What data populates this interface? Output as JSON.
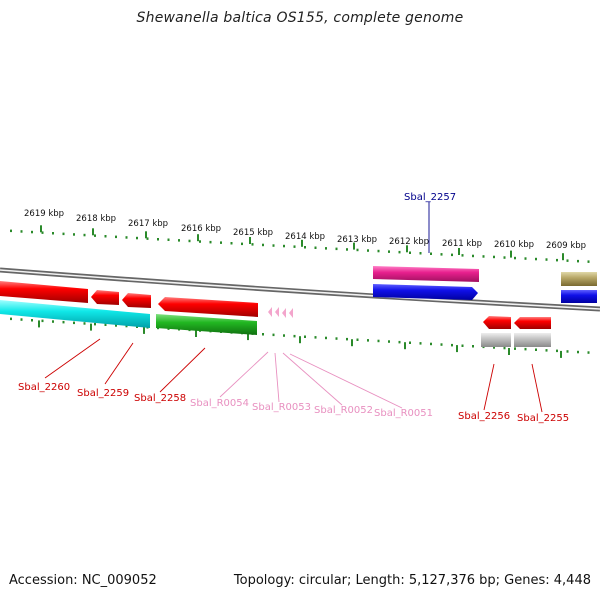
{
  "title": "Shewanella baltica OS155, complete genome",
  "footer": {
    "accession": "Accession: NC_009052",
    "summary": "Topology: circular; Length: 5,127,376 bp; Genes: 4,448"
  },
  "colors": {
    "background": "#ffffff",
    "backbone": "#8a8a8a",
    "tick": "#2a8a2a",
    "cds_red": "#e00000",
    "rna_pink": "#f2a0c8",
    "label_red": "#cc0000",
    "label_pink": "#e890c0",
    "label_blue": "#00008b",
    "feat_magenta": "#e0208a",
    "feat_blue": "#1010e0",
    "feat_cyan": "#10e0e0",
    "feat_green": "#20b020",
    "feat_gray": "#bdbdbd",
    "feat_olive": "#b0a060"
  },
  "ruler_labels": [
    "2619 kbp",
    "2618 kbp",
    "2617 kbp",
    "2616 kbp",
    "2615 kbp",
    "2614 kbp",
    "2613 kbp",
    "2612 kbp",
    "2611 kbp",
    "2610 kbp",
    "2609 kbp"
  ],
  "gene_labels": [
    {
      "text": "Sbal_2257",
      "color": "label_blue"
    },
    {
      "text": "Sbal_2260",
      "color": "label_red"
    },
    {
      "text": "Sbal_2259",
      "color": "label_red"
    },
    {
      "text": "Sbal_2258",
      "color": "label_red"
    },
    {
      "text": "Sbal_R0054",
      "color": "label_pink"
    },
    {
      "text": "Sbal_R0053",
      "color": "label_pink"
    },
    {
      "text": "Sbal_R0052",
      "color": "label_pink"
    },
    {
      "text": "Sbal_R0051",
      "color": "label_pink"
    },
    {
      "text": "Sbal_2256",
      "color": "label_red"
    },
    {
      "text": "Sbal_2255",
      "color": "label_red"
    }
  ]
}
